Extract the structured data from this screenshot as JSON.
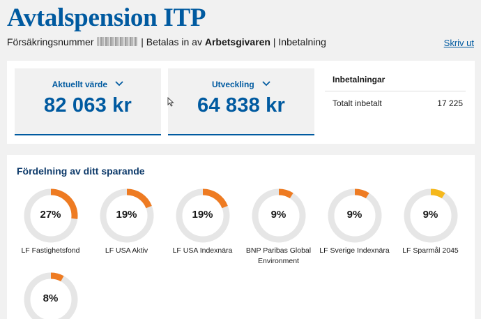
{
  "header": {
    "title": "Avtalspension ITP",
    "policy_label": "Försäkringsnummer",
    "paid_prefix": "| Betalas in av",
    "paid_by": "Arbetsgivaren",
    "payment_type": "| Inbetalning",
    "print_link": "Skriv ut"
  },
  "summary": {
    "current_value": {
      "label": "Aktuellt värde",
      "value": "82 063 kr"
    },
    "development": {
      "label": "Utveckling",
      "value": "64 838 kr"
    },
    "payments": {
      "title": "Inbetalningar",
      "total_label": "Totalt inbetalt",
      "total_value": "17 225"
    }
  },
  "distribution": {
    "title": "Fördelning av ditt sparande",
    "funds": [
      {
        "label": "LF Fastighetsfond",
        "pct_text": "27%",
        "fraction": 0.27,
        "color": "#ee7b22"
      },
      {
        "label": "LF USA Aktiv",
        "pct_text": "19%",
        "fraction": 0.19,
        "color": "#ee7b22"
      },
      {
        "label": "LF USA Indexnära",
        "pct_text": "19%",
        "fraction": 0.19,
        "color": "#ee7b22"
      },
      {
        "label": "BNP Paribas Global Environment",
        "pct_text": "9%",
        "fraction": 0.09,
        "color": "#ee7b22"
      },
      {
        "label": "LF Sverige Indexnära",
        "pct_text": "9%",
        "fraction": 0.09,
        "color": "#ee7b22"
      },
      {
        "label": "LF Sparmål 2045",
        "pct_text": "9%",
        "fraction": 0.09,
        "color": "#f5b81c"
      },
      {
        "label": "",
        "pct_text": "8%",
        "fraction": 0.08,
        "color": "#ee7b22"
      }
    ],
    "track_color": "#e6e6e6"
  }
}
